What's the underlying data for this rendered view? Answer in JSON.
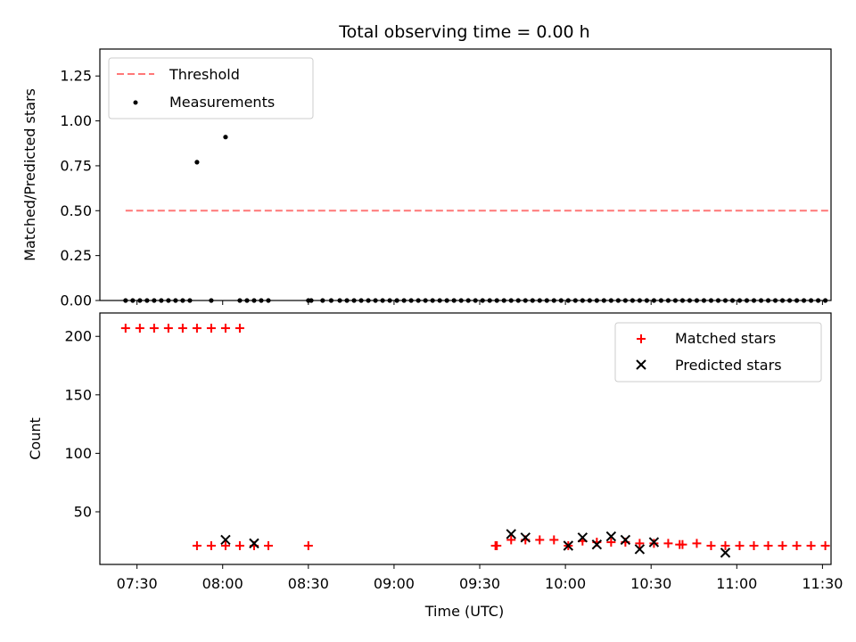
{
  "chart_data": [
    {
      "type": "scatter",
      "title": "Total observing time = 0.00 h",
      "xlabel": "",
      "ylabel": "Matched/Predicted stars",
      "ylim": [
        0,
        1.4
      ],
      "yticks": [
        0.0,
        0.25,
        0.5,
        0.75,
        1.0,
        1.25
      ],
      "ytick_labels": [
        "0.00",
        "0.25",
        "0.50",
        "0.75",
        "1.00",
        "1.25"
      ],
      "xlim": [
        437,
        693
      ],
      "xticks": [
        450,
        480,
        510,
        540,
        570,
        600,
        630,
        660,
        690
      ],
      "grid": false,
      "legend_position": "top-left",
      "series": [
        {
          "name": "Threshold",
          "style": "dashed-line",
          "color": "#ff7777",
          "x": [
            446,
            692
          ],
          "y": [
            0.5,
            0.5
          ]
        },
        {
          "name": "Measurements",
          "style": "dot",
          "color": "#000000",
          "x": [
            446,
            448.5,
            451,
            453.5,
            456,
            458.5,
            461,
            463.5,
            466,
            468.5,
            471,
            476,
            481,
            486,
            488.5,
            491,
            493.5,
            496,
            510,
            511,
            515,
            518,
            521,
            523.5,
            526,
            528.5,
            531,
            533.5,
            536,
            538.5,
            541,
            543.5,
            546,
            548.5,
            551,
            553.5,
            556,
            558.5,
            561,
            563.5,
            566,
            568.5,
            571,
            573.5,
            576,
            578.5,
            581,
            583.5,
            586,
            588.5,
            591,
            593.5,
            596,
            598.5,
            601,
            603.5,
            606,
            608.5,
            611,
            613.5,
            616,
            618.5,
            621,
            623.5,
            626,
            628.5,
            631,
            633.5,
            636,
            638.5,
            641,
            643.5,
            646,
            648.5,
            651,
            653.5,
            656,
            658.5,
            661,
            663.5,
            666,
            668.5,
            671,
            673.5,
            676,
            678.5,
            681,
            683.5,
            686,
            688.5,
            691
          ],
          "y": [
            0,
            0,
            0,
            0,
            0,
            0,
            0,
            0,
            0,
            0,
            0.77,
            0,
            0.91,
            0,
            0,
            0,
            0,
            0,
            0,
            0,
            0,
            0,
            0,
            0,
            0,
            0,
            0,
            0,
            0,
            0,
            0,
            0,
            0,
            0,
            0,
            0,
            0,
            0,
            0,
            0,
            0,
            0,
            0,
            0,
            0,
            0,
            0,
            0,
            0,
            0,
            0,
            0,
            0,
            0,
            0,
            0,
            0,
            0,
            0,
            0,
            0,
            0,
            0,
            0,
            0,
            0,
            0,
            0,
            0,
            0,
            0,
            0,
            0,
            0,
            0,
            0,
            0,
            0,
            0,
            0,
            0,
            0,
            0,
            0,
            0,
            0,
            0,
            0,
            0,
            0,
            0
          ]
        }
      ]
    },
    {
      "type": "scatter",
      "title": "",
      "xlabel": "Time (UTC)",
      "ylabel": "Count",
      "ylim": [
        5,
        220
      ],
      "yticks": [
        50,
        100,
        150,
        200
      ],
      "ytick_labels": [
        "50",
        "100",
        "150",
        "200"
      ],
      "xlim": [
        437,
        693
      ],
      "xticks": [
        450,
        480,
        510,
        540,
        570,
        600,
        630,
        660,
        690
      ],
      "xtick_labels": [
        "07:30",
        "08:00",
        "08:30",
        "09:00",
        "09:30",
        "10:00",
        "10:30",
        "11:00",
        "11:30"
      ],
      "grid": false,
      "legend_position": "top-right",
      "series": [
        {
          "name": "Matched stars",
          "marker": "plus",
          "color": "#ff0000",
          "x": [
            446,
            451,
            456,
            461,
            466,
            471,
            476,
            481,
            486,
            471,
            476,
            481,
            486,
            491,
            496,
            510,
            575.5,
            576,
            581,
            586,
            591,
            596,
            601,
            606,
            611,
            616,
            621,
            626,
            631,
            636,
            640,
            641,
            646,
            651,
            656,
            661,
            666,
            671,
            676,
            681,
            686,
            691
          ],
          "y": [
            207,
            207,
            207,
            207,
            207,
            207,
            207,
            207,
            207,
            21,
            21,
            21,
            21,
            21,
            21,
            21,
            21,
            21,
            26,
            26,
            26,
            26,
            21,
            25,
            24,
            24,
            24,
            23,
            23,
            23,
            22,
            22,
            23,
            21,
            21,
            21,
            21,
            21,
            21,
            21,
            21,
            21
          ]
        },
        {
          "name": "Predicted stars",
          "marker": "x",
          "color": "#000000",
          "x": [
            481,
            491,
            581,
            586,
            601,
            606,
            611,
            616,
            621,
            626,
            631,
            656
          ],
          "y": [
            26,
            23,
            31,
            28,
            21,
            28,
            22,
            29,
            26,
            18,
            24,
            15
          ]
        }
      ]
    }
  ]
}
